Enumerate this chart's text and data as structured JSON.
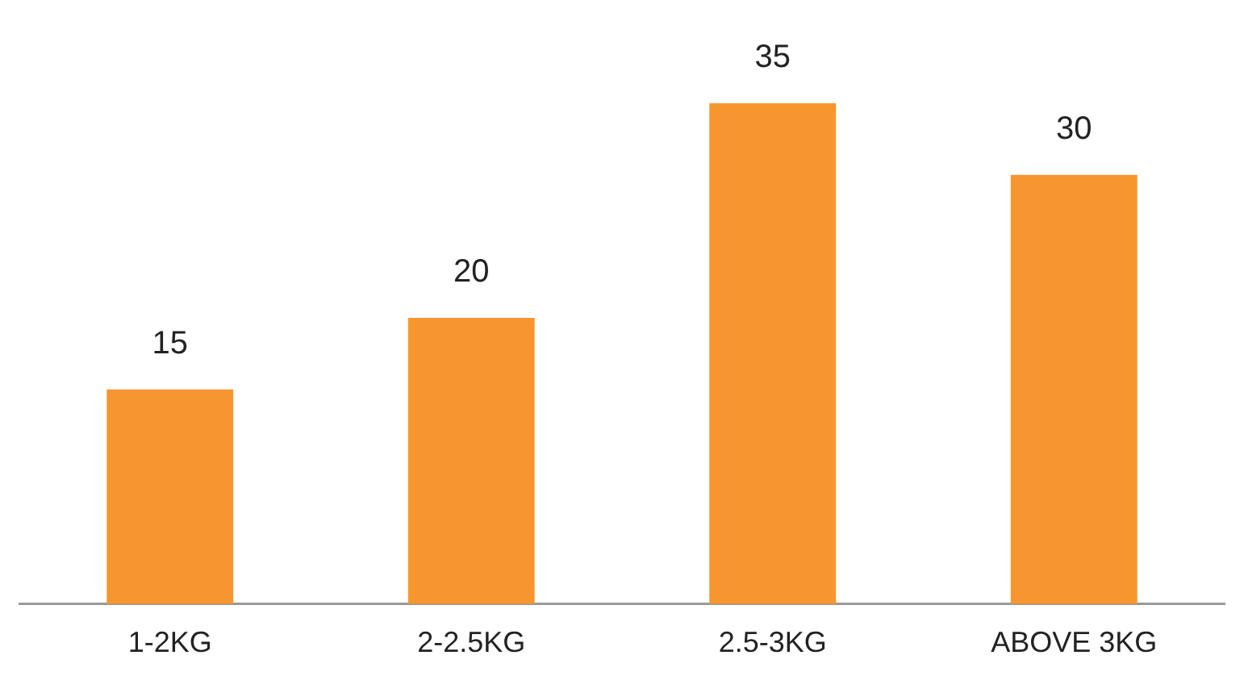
{
  "chart_data": {
    "type": "bar",
    "categories": [
      "1-2KG",
      "2-2.5KG",
      "2.5-3KG",
      "ABOVE 3KG"
    ],
    "values": [
      15,
      20,
      35,
      30
    ],
    "color": "#f7962f",
    "data_labels": true,
    "grid": false,
    "legend": false
  }
}
